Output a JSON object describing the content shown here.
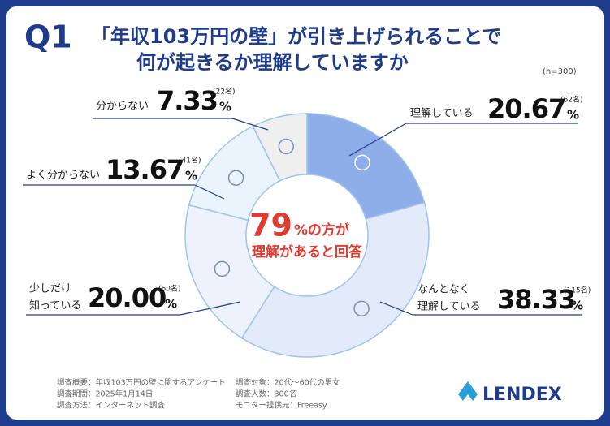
{
  "chart_data": {
    "type": "donut",
    "badge": "Q1",
    "title": [
      "「年収103万円の壁」が引き上げられることで",
      "何が起きるか理解していますか"
    ],
    "sample_note": "(n=300)",
    "categories": [
      [
        "理解している"
      ],
      [
        "なんとなく",
        "理解している"
      ],
      [
        "少しだけ",
        "知っている"
      ],
      [
        "よく分からない"
      ],
      [
        "分からない"
      ]
    ],
    "values": [
      20.67,
      38.33,
      20.0,
      13.67,
      7.33
    ],
    "value_labels": [
      "20.67",
      "38.33",
      "20.00",
      "13.67",
      "7.33"
    ],
    "unit": "%",
    "counts": [
      62,
      115,
      60,
      41,
      22
    ],
    "count_labels": [
      "(62名)",
      "(115名)",
      "(60名)",
      "(41名)",
      "(22名)"
    ],
    "colors": [
      "#8eaeea",
      "#e3ebfa",
      "#edf2fc",
      "#e9f4fc",
      "#efefef"
    ],
    "center": {
      "figure": 79,
      "figure_unit": "%の方が",
      "text": "理解があると回答"
    },
    "footnotes": [
      "調査概要：年収103万円の壁に関するアンケート",
      "調査期間：2025年1月14日",
      "調査方法：インターネット調査",
      "調査対象：20代～60代の男女",
      "調査人数：300名",
      "モニター提供元：Freeasy"
    ],
    "brand": "LENDEX"
  }
}
